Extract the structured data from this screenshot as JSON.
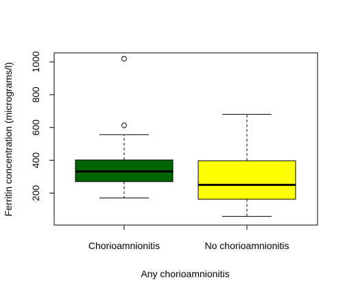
{
  "chart_data": {
    "type": "boxplot",
    "title": "",
    "xlabel": "Any chorioamnionitis",
    "ylabel": "Ferritin concentration (micrograms/l)",
    "ylim": [
      5,
      1055
    ],
    "yticks": [
      200,
      400,
      600,
      800,
      1000
    ],
    "ytick_labels": [
      "200",
      "400",
      "600",
      "800",
      "1000"
    ],
    "grid": false,
    "legend": "none",
    "categories": [
      "Chorioamnionitis",
      "No chorioamnionitis"
    ],
    "boxes": [
      {
        "category": "Chorioamnionitis",
        "color": "#006400",
        "whisker_low": 170,
        "q1": 270,
        "median": 332,
        "q3": 402,
        "whisker_high": 556,
        "outliers": [
          613,
          1019
        ]
      },
      {
        "category": "No chorioamnionitis",
        "color": "#ffff00",
        "whisker_low": 58,
        "q1": 163,
        "median": 250,
        "q3": 397,
        "whisker_high": 680,
        "outliers": []
      }
    ]
  }
}
